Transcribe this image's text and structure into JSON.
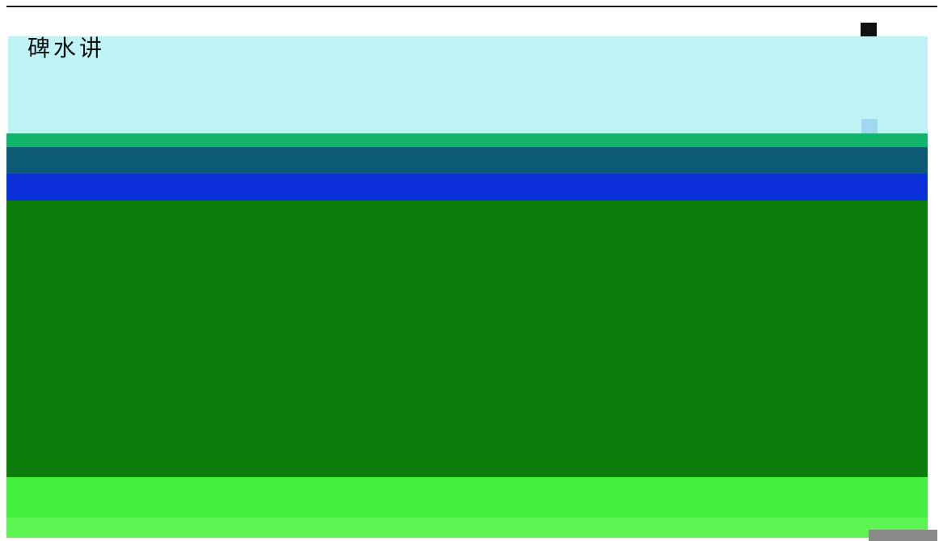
{
  "header": {
    "title": "碑水讲"
  }
}
